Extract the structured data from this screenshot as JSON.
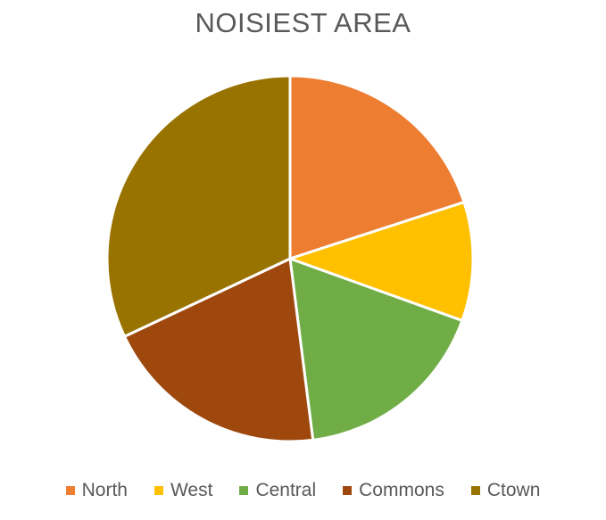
{
  "chart_data": {
    "type": "pie",
    "title": "NOISIEST AREA",
    "categories": [
      "North",
      "West",
      "Central",
      "Commons",
      "Ctown"
    ],
    "values": [
      20,
      10.5,
      17.5,
      20,
      32
    ],
    "colors": [
      "#ED7D31",
      "#FFC000",
      "#70AD47",
      "#9E480E",
      "#997300"
    ],
    "legend_position": "bottom"
  }
}
